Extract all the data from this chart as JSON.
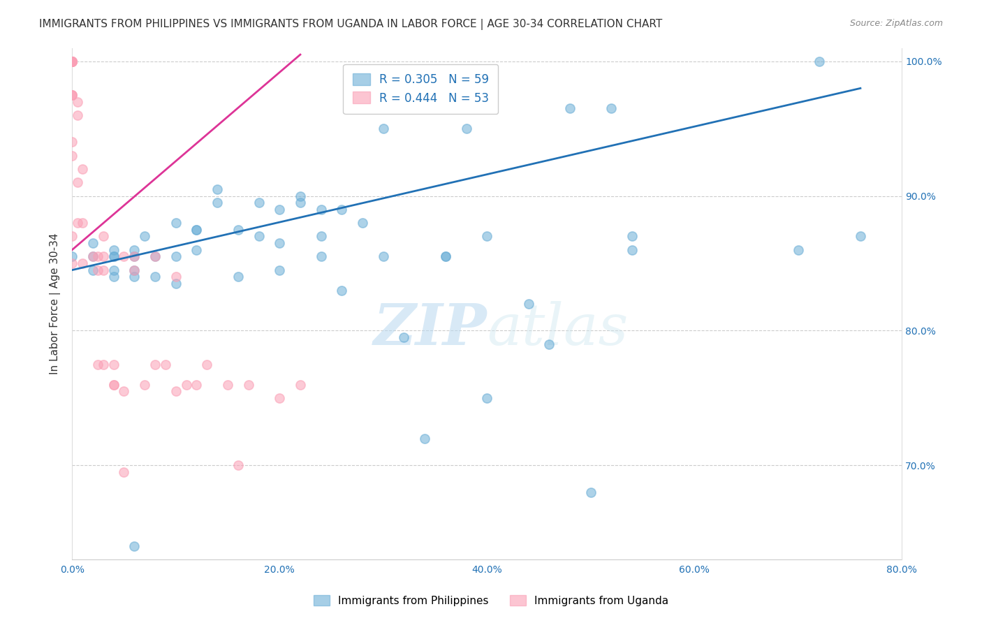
{
  "title": "IMMIGRANTS FROM PHILIPPINES VS IMMIGRANTS FROM UGANDA IN LABOR FORCE | AGE 30-34 CORRELATION CHART",
  "source": "Source: ZipAtlas.com",
  "ylabel_label": "In Labor Force | Age 30-34",
  "xmin": 0.0,
  "xmax": 0.8,
  "ymin": 0.63,
  "ymax": 1.01,
  "grid_color": "#cccccc",
  "background_color": "#ffffff",
  "blue_color": "#6baed6",
  "pink_color": "#fa9fb5",
  "blue_line_color": "#2171b5",
  "pink_line_color": "#dd3497",
  "blue_r": "0.305",
  "blue_n": "59",
  "pink_r": "0.444",
  "pink_n": "53",
  "legend_blue_label": "Immigrants from Philippines",
  "legend_pink_label": "Immigrants from Uganda",
  "watermark_zip": "ZIP",
  "watermark_atlas": "atlas",
  "blue_scatter_x": [
    0.0,
    0.02,
    0.02,
    0.02,
    0.04,
    0.04,
    0.04,
    0.04,
    0.04,
    0.06,
    0.06,
    0.06,
    0.06,
    0.06,
    0.07,
    0.08,
    0.08,
    0.1,
    0.1,
    0.1,
    0.12,
    0.12,
    0.12,
    0.14,
    0.14,
    0.16,
    0.16,
    0.18,
    0.18,
    0.2,
    0.2,
    0.2,
    0.22,
    0.22,
    0.24,
    0.24,
    0.24,
    0.26,
    0.26,
    0.28,
    0.3,
    0.3,
    0.32,
    0.34,
    0.36,
    0.36,
    0.38,
    0.4,
    0.4,
    0.44,
    0.46,
    0.48,
    0.5,
    0.52,
    0.54,
    0.54,
    0.7,
    0.72,
    0.76
  ],
  "blue_scatter_y": [
    0.855,
    0.845,
    0.855,
    0.865,
    0.86,
    0.855,
    0.855,
    0.845,
    0.84,
    0.855,
    0.86,
    0.845,
    0.84,
    0.64,
    0.87,
    0.855,
    0.84,
    0.88,
    0.855,
    0.835,
    0.875,
    0.875,
    0.86,
    0.905,
    0.895,
    0.875,
    0.84,
    0.895,
    0.87,
    0.89,
    0.865,
    0.845,
    0.9,
    0.895,
    0.89,
    0.87,
    0.855,
    0.89,
    0.83,
    0.88,
    0.95,
    0.855,
    0.795,
    0.72,
    0.855,
    0.855,
    0.95,
    0.87,
    0.75,
    0.82,
    0.79,
    0.965,
    0.68,
    0.965,
    0.87,
    0.86,
    0.86,
    1.0,
    0.87
  ],
  "pink_scatter_x": [
    0.0,
    0.0,
    0.0,
    0.0,
    0.0,
    0.0,
    0.0,
    0.0,
    0.0,
    0.0,
    0.0,
    0.0,
    0.0,
    0.0,
    0.0,
    0.0,
    0.005,
    0.005,
    0.005,
    0.005,
    0.01,
    0.01,
    0.01,
    0.02,
    0.025,
    0.025,
    0.025,
    0.03,
    0.03,
    0.03,
    0.03,
    0.04,
    0.04,
    0.04,
    0.05,
    0.05,
    0.05,
    0.06,
    0.06,
    0.07,
    0.08,
    0.08,
    0.09,
    0.1,
    0.1,
    0.11,
    0.12,
    0.13,
    0.15,
    0.16,
    0.17,
    0.2,
    0.22
  ],
  "pink_scatter_y": [
    1.0,
    1.0,
    1.0,
    1.0,
    1.0,
    1.0,
    1.0,
    1.0,
    1.0,
    0.975,
    0.975,
    0.975,
    0.94,
    0.93,
    0.87,
    0.85,
    0.97,
    0.96,
    0.91,
    0.88,
    0.92,
    0.88,
    0.85,
    0.855,
    0.855,
    0.845,
    0.775,
    0.87,
    0.855,
    0.845,
    0.775,
    0.775,
    0.76,
    0.76,
    0.695,
    0.855,
    0.755,
    0.855,
    0.845,
    0.76,
    0.855,
    0.775,
    0.775,
    0.755,
    0.84,
    0.76,
    0.76,
    0.775,
    0.76,
    0.7,
    0.76,
    0.75,
    0.76
  ],
  "blue_trend_x": [
    0.0,
    0.76
  ],
  "blue_trend_y": [
    0.845,
    0.98
  ],
  "pink_trend_x": [
    0.0,
    0.22
  ],
  "pink_trend_y": [
    0.86,
    1.005
  ]
}
